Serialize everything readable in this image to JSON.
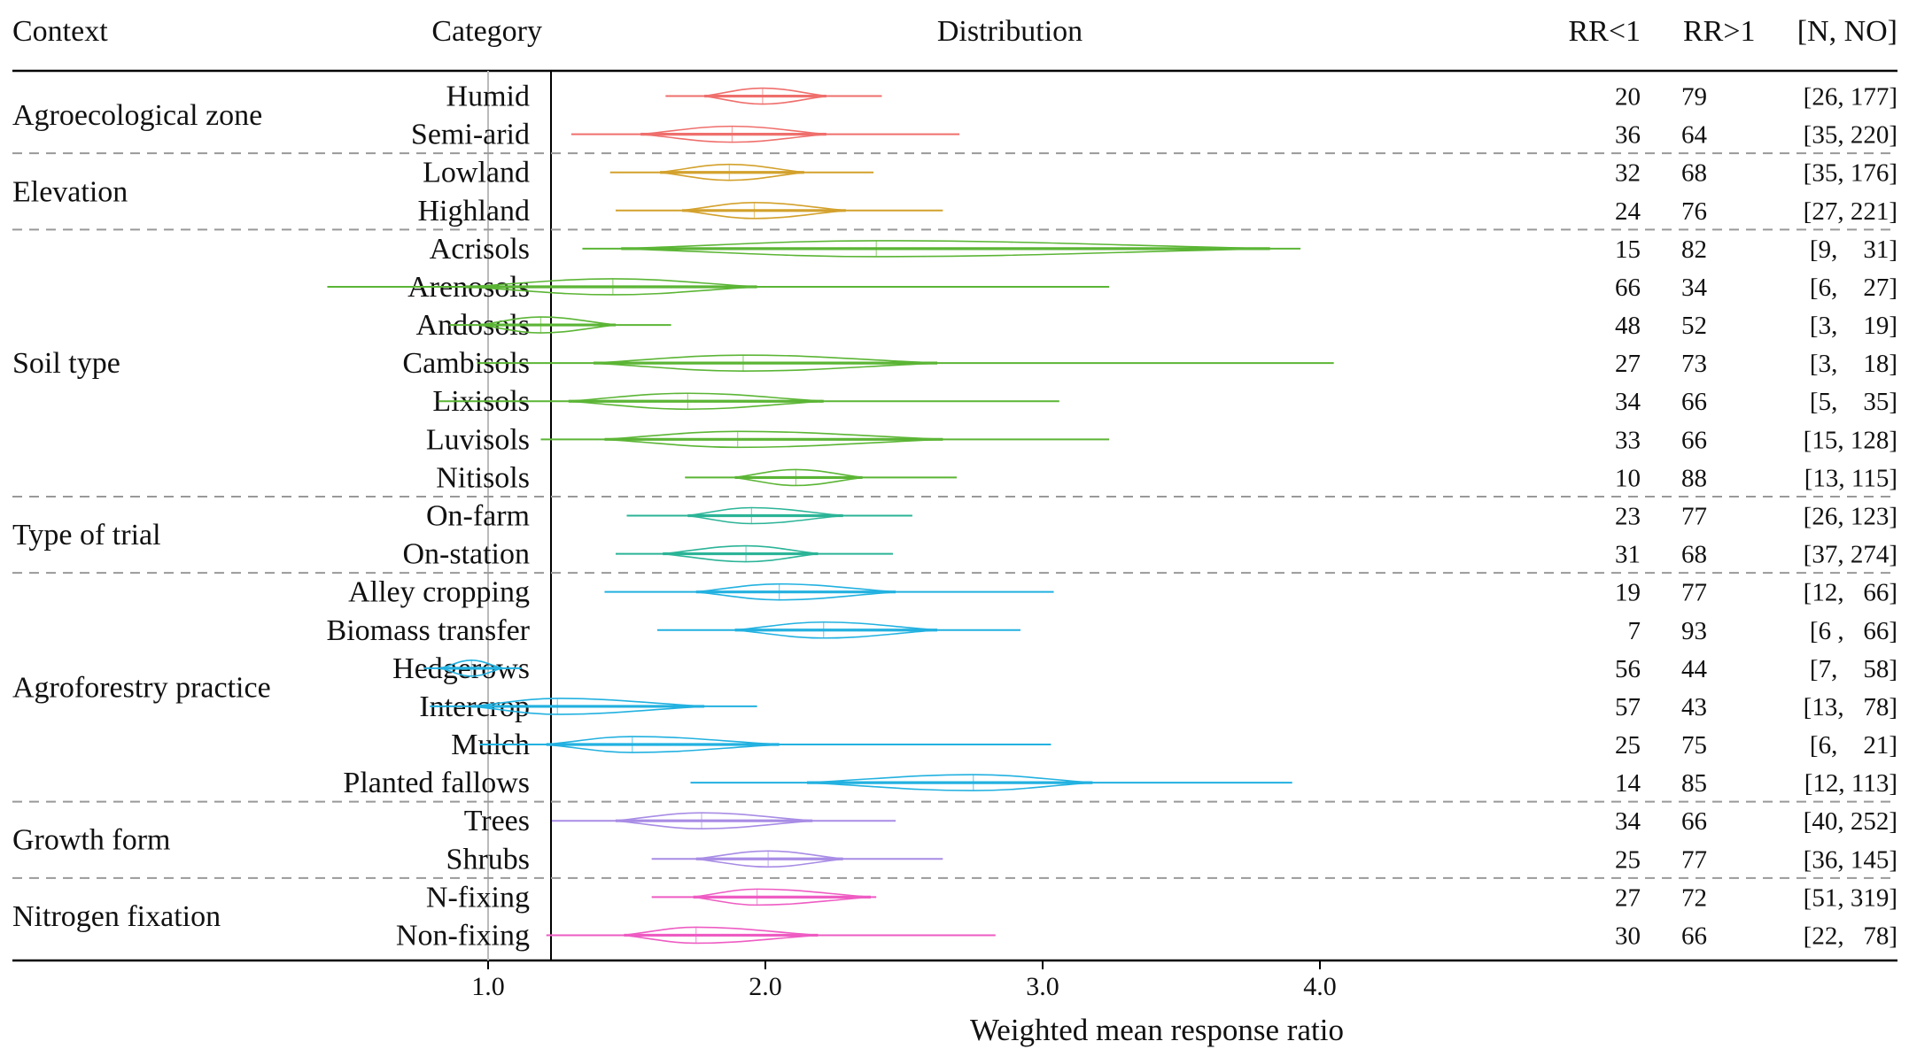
{
  "headers": {
    "context": "Context",
    "category": "Category",
    "distribution": "Distribution",
    "rr_lt": "RR<1",
    "rr_gt": "RR>1",
    "n_no": "[N, NO]"
  },
  "chart_data": {
    "type": "forest",
    "xlabel": "Weighted mean response ratio",
    "xlim": [
      0.0,
      5.0
    ],
    "xticks": [
      {
        "value": 1.0,
        "label": "1.0"
      },
      {
        "value": 2.0,
        "label": "2.0"
      },
      {
        "value": 3.0,
        "label": "3.0"
      },
      {
        "value": 4.0,
        "label": "4.0"
      }
    ],
    "reference_line": 1.0,
    "groups": [
      {
        "context": "Agroecological zone",
        "color": "#ef6f6c",
        "rows": [
          {
            "category": "Humid",
            "min": 1.64,
            "q1": 1.78,
            "mean": 1.99,
            "q3": 2.22,
            "max": 2.42,
            "rr_lt": "20",
            "rr_gt": "79",
            "n_no": "[26, 177]"
          },
          {
            "category": "Semi-arid",
            "min": 1.3,
            "q1": 1.55,
            "mean": 1.88,
            "q3": 2.22,
            "max": 2.7,
            "rr_lt": "36",
            "rr_gt": "64",
            "n_no": "[35, 220]"
          }
        ]
      },
      {
        "context": "Elevation",
        "color": "#d3a12c",
        "rows": [
          {
            "category": "Lowland",
            "min": 1.44,
            "q1": 1.62,
            "mean": 1.87,
            "q3": 2.14,
            "max": 2.39,
            "rr_lt": "32",
            "rr_gt": "68",
            "n_no": "[35, 176]"
          },
          {
            "category": "Highland",
            "min": 1.46,
            "q1": 1.7,
            "mean": 1.96,
            "q3": 2.29,
            "max": 2.64,
            "rr_lt": "24",
            "rr_gt": "76",
            "n_no": "[27, 221]"
          }
        ]
      },
      {
        "context": "Soil type",
        "color": "#5bb535",
        "rows": [
          {
            "category": "Acrisols",
            "min": 1.34,
            "q1": 1.48,
            "mean": 2.4,
            "q3": 3.82,
            "max": 3.93,
            "rr_lt": "15",
            "rr_gt": "82",
            "n_no": "[9,    31]"
          },
          {
            "category": "Arenosols",
            "min": 0.42,
            "q1": 0.92,
            "mean": 1.45,
            "q3": 1.97,
            "max": 3.24,
            "rr_lt": "66",
            "rr_gt": "34",
            "n_no": "[6,    27]"
          },
          {
            "category": "Andosols",
            "min": 0.86,
            "q1": 0.97,
            "mean": 1.19,
            "q3": 1.46,
            "max": 1.66,
            "rr_lt": "48",
            "rr_gt": "52",
            "n_no": "[3,    19]"
          },
          {
            "category": "Cambisols",
            "min": 0.96,
            "q1": 1.38,
            "mean": 1.92,
            "q3": 2.62,
            "max": 4.05,
            "rr_lt": "27",
            "rr_gt": "73",
            "n_no": "[3,    18]"
          },
          {
            "category": "Lixisols",
            "min": 0.82,
            "q1": 1.29,
            "mean": 1.72,
            "q3": 2.21,
            "max": 3.06,
            "rr_lt": "34",
            "rr_gt": "66",
            "n_no": "[5,    35]"
          },
          {
            "category": "Luvisols",
            "min": 1.19,
            "q1": 1.42,
            "mean": 1.9,
            "q3": 2.64,
            "max": 3.24,
            "rr_lt": "33",
            "rr_gt": "66",
            "n_no": "[15, 128]"
          },
          {
            "category": "Nitisols",
            "min": 1.71,
            "q1": 1.89,
            "mean": 2.11,
            "q3": 2.35,
            "max": 2.69,
            "rr_lt": "10",
            "rr_gt": "88",
            "n_no": "[13, 115]"
          }
        ]
      },
      {
        "context": "Type  of trial",
        "color": "#2bb497",
        "rows": [
          {
            "category": "On-farm",
            "min": 1.5,
            "q1": 1.72,
            "mean": 1.95,
            "q3": 2.28,
            "max": 2.53,
            "rr_lt": "23",
            "rr_gt": "77",
            "n_no": "[26, 123]"
          },
          {
            "category": "On-station",
            "min": 1.46,
            "q1": 1.63,
            "mean": 1.93,
            "q3": 2.19,
            "max": 2.46,
            "rr_lt": "31",
            "rr_gt": "68",
            "n_no": "[37, 274]"
          }
        ]
      },
      {
        "context": "Agroforestry practice",
        "color": "#22b1e0",
        "rows": [
          {
            "category": "Alley  cropping",
            "min": 1.42,
            "q1": 1.75,
            "mean": 2.05,
            "q3": 2.47,
            "max": 3.04,
            "rr_lt": "19",
            "rr_gt": "77",
            "n_no": "[12,   66]"
          },
          {
            "category": "Biomass transfer",
            "min": 1.61,
            "q1": 1.89,
            "mean": 2.21,
            "q3": 2.62,
            "max": 2.92,
            "rr_lt": "7",
            "rr_gt": "93",
            "n_no": "[6 ,   66]"
          },
          {
            "category": "Hedgerows",
            "min": 0.77,
            "q1": 0.83,
            "mean": 0.94,
            "q3": 1.05,
            "max": 1.12,
            "rr_lt": "56",
            "rr_gt": "44",
            "n_no": "[7,    58]"
          },
          {
            "category": "Intercrop",
            "min": 0.79,
            "q1": 0.94,
            "mean": 1.25,
            "q3": 1.78,
            "max": 1.97,
            "rr_lt": "57",
            "rr_gt": "43",
            "n_no": "[13,   78]"
          },
          {
            "category": "Mulch",
            "min": 0.97,
            "q1": 1.21,
            "mean": 1.52,
            "q3": 2.05,
            "max": 3.03,
            "rr_lt": "25",
            "rr_gt": "75",
            "n_no": "[6,    21]"
          },
          {
            "category": "Planted fallows",
            "min": 1.73,
            "q1": 2.15,
            "mean": 2.75,
            "q3": 3.18,
            "max": 3.9,
            "rr_lt": "14",
            "rr_gt": "85",
            "n_no": "[12, 113]"
          }
        ]
      },
      {
        "context": "Growth form",
        "color": "#a88ce5",
        "rows": [
          {
            "category": "Trees",
            "min": 1.23,
            "q1": 1.46,
            "mean": 1.77,
            "q3": 2.17,
            "max": 2.47,
            "rr_lt": "34",
            "rr_gt": "66",
            "n_no": "[40, 252]"
          },
          {
            "category": "Shrubs",
            "min": 1.59,
            "q1": 1.75,
            "mean": 2.01,
            "q3": 2.28,
            "max": 2.64,
            "rr_lt": "25",
            "rr_gt": "77",
            "n_no": "[36, 145]"
          }
        ]
      },
      {
        "context": "Nitrogen fixation",
        "color": "#ee5cc3",
        "rows": [
          {
            "category": "N-fixing",
            "min": 1.59,
            "q1": 1.74,
            "mean": 1.97,
            "q3": 2.38,
            "max": 2.4,
            "rr_lt": "27",
            "rr_gt": "72",
            "n_no": "[51, 319]"
          },
          {
            "category": "Non-fixing",
            "min": 1.21,
            "q1": 1.49,
            "mean": 1.75,
            "q3": 2.19,
            "max": 2.83,
            "rr_lt": "30",
            "rr_gt": "66",
            "n_no": "[22,   78]"
          }
        ]
      }
    ]
  }
}
